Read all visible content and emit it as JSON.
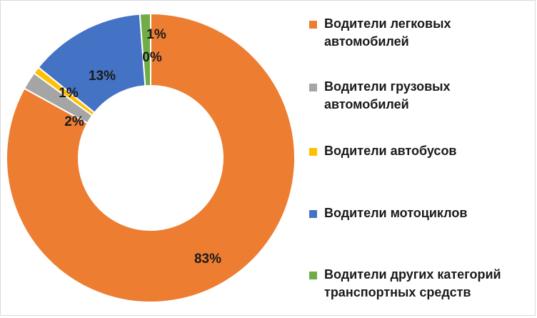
{
  "chart_data": {
    "type": "pie",
    "title": "",
    "series": [
      {
        "name": "Водители легковых\nавтомобилей",
        "value": 83,
        "label": "83%",
        "color": "#ED7D31"
      },
      {
        "name": "Водители грузовых\nавтомобилей",
        "value": 2,
        "label": "2%",
        "color": "#A5A5A5"
      },
      {
        "name": "Водители автобусов",
        "value": 0.8,
        "label": "1%",
        "color": "#FFC000"
      },
      {
        "name": "Водители мотоциклов",
        "value": 13,
        "label": "13%",
        "color": "#4472C4"
      },
      {
        "name": "Водители других категорий\nтранспортных средств",
        "value": 1.2,
        "label": "1%",
        "color": "#70AD47"
      }
    ],
    "extra_label": "0%",
    "legend_position": "right"
  }
}
